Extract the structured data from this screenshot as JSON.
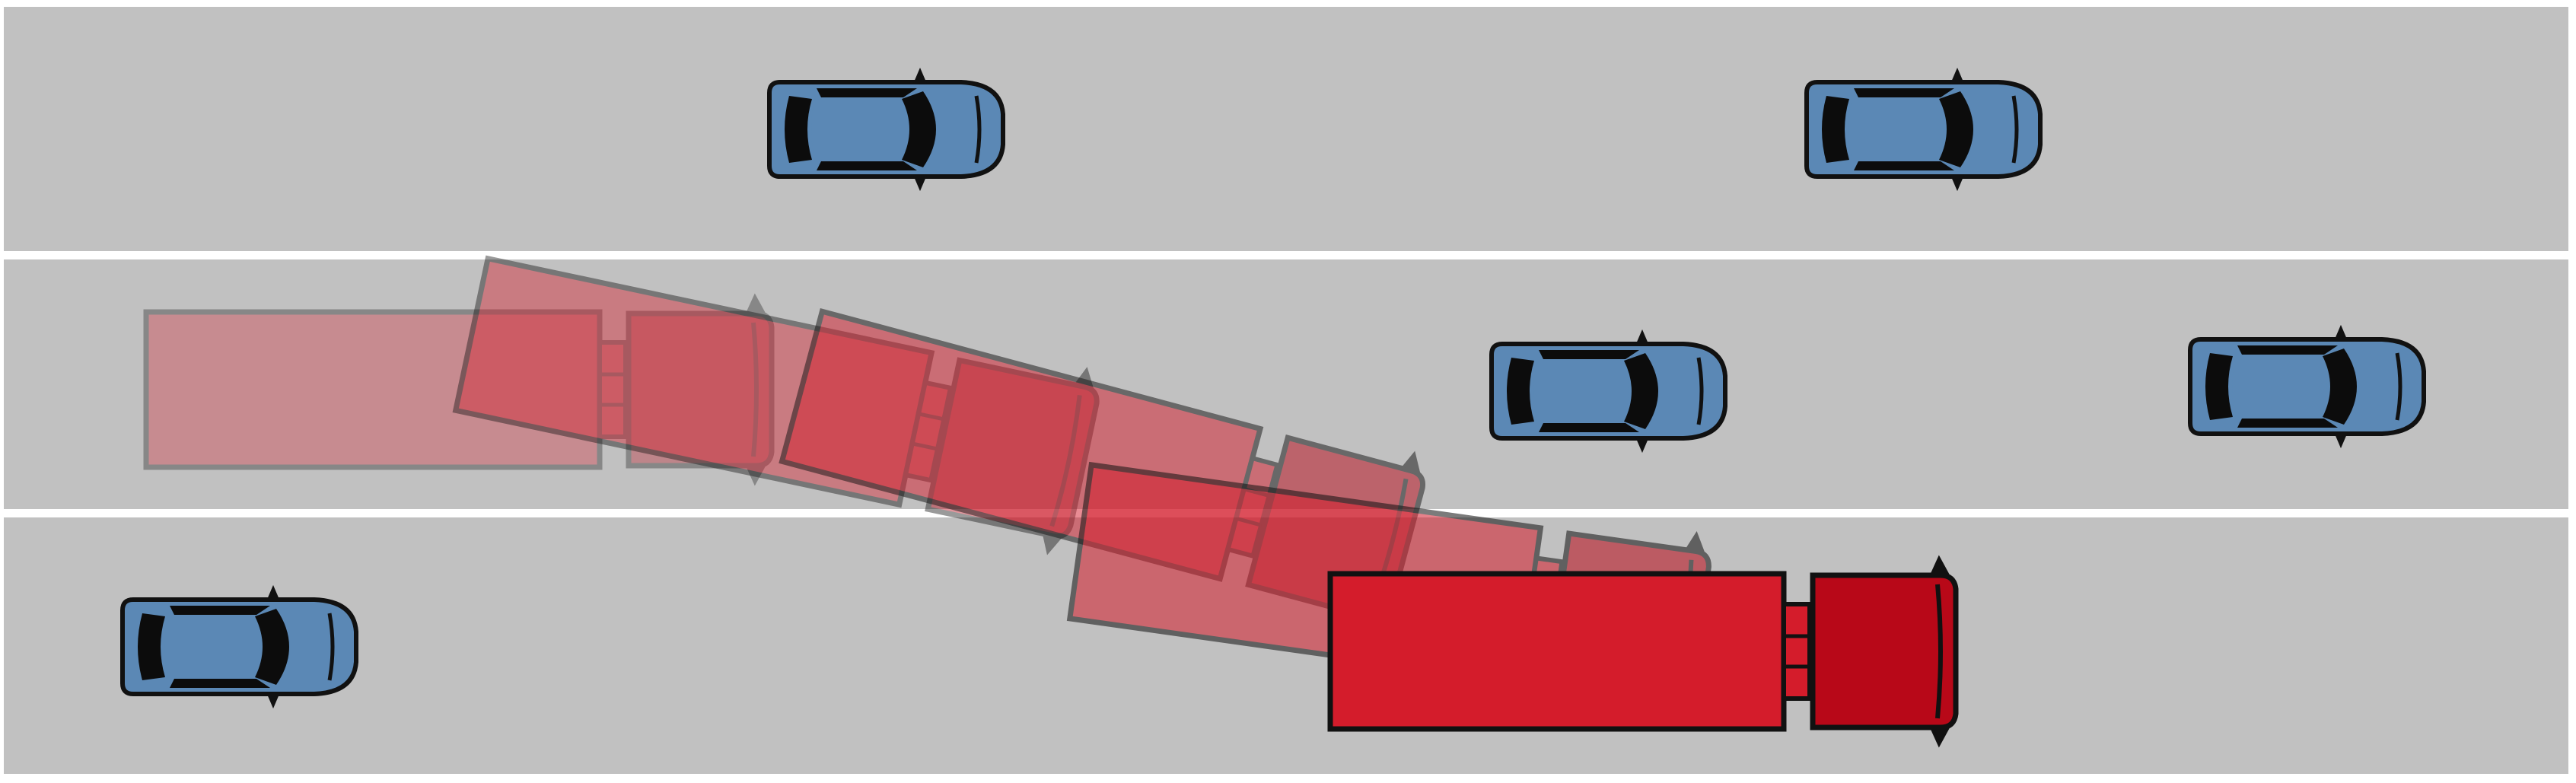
{
  "diagram": {
    "type": "highway-lane-change-scenario",
    "lane_count": 3,
    "colors": {
      "road": "#c1c1c1",
      "lane_divider": "#ffffff",
      "car_body": "#5b88b5",
      "car_outline": "#111111",
      "truck_cab": "#b80818",
      "truck_trailer": "#d41c2b",
      "truck_outline": "#111111",
      "ghost_truck": "#c54e5a"
    },
    "ego_vehicle": {
      "kind": "articulated-truck",
      "maneuver": "lane-change",
      "from_lane": 2,
      "to_lane": 3,
      "ghost_positions_shown": 4
    },
    "other_vehicles": [
      {
        "kind": "car",
        "lane": 1
      },
      {
        "kind": "car",
        "lane": 1
      },
      {
        "kind": "car",
        "lane": 2
      },
      {
        "kind": "car",
        "lane": 2
      },
      {
        "kind": "car",
        "lane": 3
      }
    ]
  }
}
